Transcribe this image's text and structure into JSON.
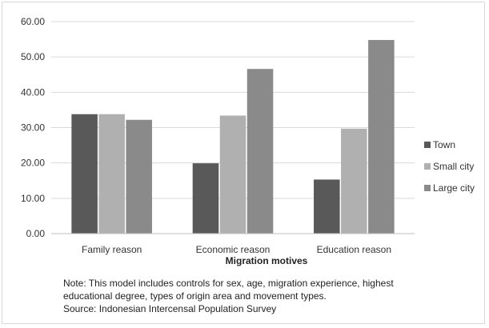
{
  "chart_data": {
    "type": "bar",
    "title": "",
    "xlabel": "Migration motives",
    "ylabel": "",
    "ylim": [
      0,
      60
    ],
    "yticks": [
      "0.00",
      "10.00",
      "20.00",
      "30.00",
      "40.00",
      "50.00",
      "60.00"
    ],
    "categories": [
      "Family reason",
      "Economic reason",
      "Education reason"
    ],
    "series": [
      {
        "name": "Town",
        "color": "#595959",
        "values": [
          33.8,
          19.9,
          15.3
        ]
      },
      {
        "name": "Small city",
        "color": "#b0b0b0",
        "values": [
          33.8,
          33.4,
          29.7
        ]
      },
      {
        "name": "Large city",
        "color": "#8a8a8a",
        "values": [
          32.2,
          46.6,
          54.8
        ]
      }
    ],
    "grid": true,
    "legend_position": "right"
  },
  "notes": {
    "line1": "Note: This model includes controls for sex, age, migration experience, highest",
    "line2": "educational degree, types of origin area and movement types.",
    "line3": "Source: Indonesian Intercensal Population Survey"
  }
}
